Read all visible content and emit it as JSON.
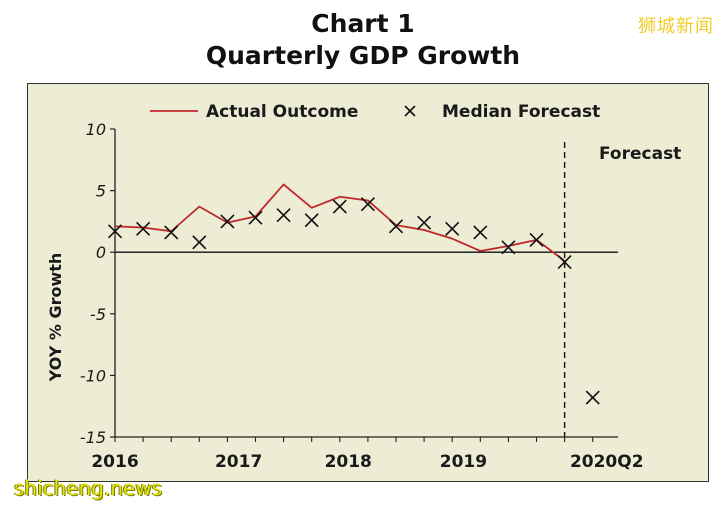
{
  "header": {
    "title": "Chart 1",
    "subtitle": "Quarterly GDP Growth"
  },
  "watermarks": {
    "brand_cn": "狮城新闻",
    "site": "shicheng.news"
  },
  "chart_data": {
    "type": "line",
    "title": "Chart 1",
    "subtitle": "Quarterly GDP Growth",
    "ylabel": "YOY % Growth",
    "xlabel": "",
    "ylim": [
      -15,
      10
    ],
    "yticks": [
      10,
      5,
      0,
      -5,
      -10,
      -15
    ],
    "x_tick_labels": [
      "2016",
      "2017",
      "2018",
      "2019",
      "2020Q2"
    ],
    "forecast_label": "Forecast",
    "grid": false,
    "legend_position": "top",
    "colors": {
      "actual": "#c0282a",
      "forecast": "#111111",
      "background": "#ededd6"
    },
    "series": [
      {
        "name": "Actual Outcome",
        "kind": "line",
        "x": [
          0,
          1,
          2,
          3,
          4,
          5,
          6,
          7,
          8,
          9,
          10,
          11,
          12,
          13,
          14,
          15,
          16
        ],
        "values": [
          2.1,
          2.0,
          1.7,
          3.7,
          2.4,
          2.9,
          5.5,
          3.6,
          4.5,
          4.2,
          2.2,
          1.8,
          1.1,
          0.1,
          0.5,
          1.0,
          -0.7
        ]
      },
      {
        "name": "Median Forecast",
        "kind": "marker",
        "marker": "x",
        "x": [
          0,
          1,
          2,
          3,
          4,
          5,
          6,
          7,
          8,
          9,
          10,
          11,
          12,
          13,
          14,
          15,
          16,
          17
        ],
        "values": [
          1.7,
          1.9,
          1.6,
          0.8,
          2.5,
          2.8,
          3.0,
          2.6,
          3.7,
          3.9,
          2.1,
          2.4,
          1.9,
          1.6,
          0.4,
          1.0,
          -0.8,
          -11.8
        ]
      }
    ]
  }
}
